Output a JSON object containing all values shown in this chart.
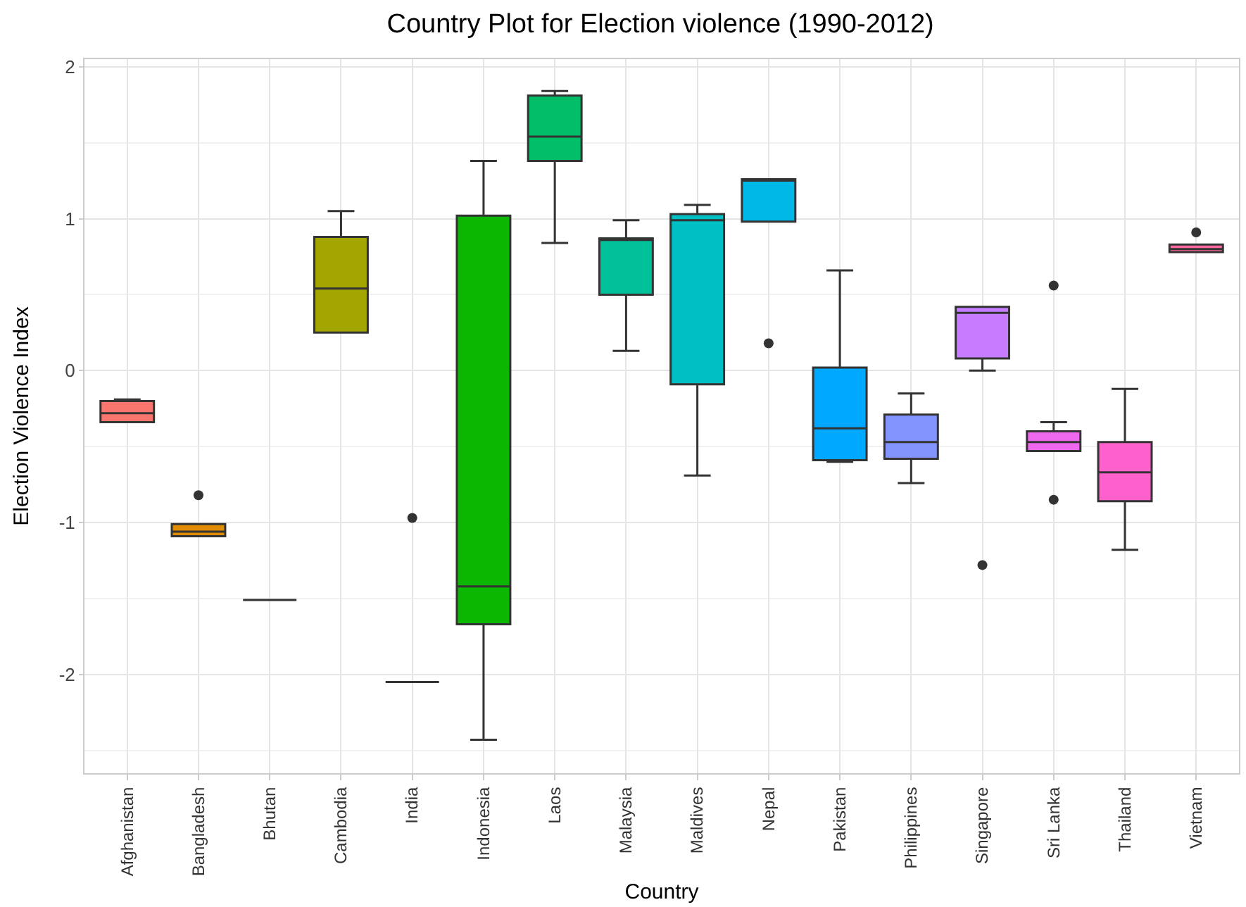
{
  "chart_data": {
    "type": "box",
    "title": "Country Plot for Election violence (1990-2012)",
    "xlabel": "Country",
    "ylabel": "Election Violence Index",
    "categories": [
      "Afghanistan",
      "Bangladesh",
      "Bhutan",
      "Cambodia",
      "India",
      "Indonesia",
      "Laos",
      "Malaysia",
      "Maldives",
      "Nepal",
      "Pakistan",
      "Philippines",
      "Singapore",
      "Sri Lanka",
      "Thailand",
      "Vietnam"
    ],
    "colors": [
      "#f8766d",
      "#e08b00",
      "#333333",
      "#a3a500",
      "#333333",
      "#0cb702",
      "#00be67",
      "#00c19a",
      "#00bfc4",
      "#00b8e7",
      "#00a9ff",
      "#8494ff",
      "#c77cff",
      "#ed68ed",
      "#ff61cc",
      "#ff68a1"
    ],
    "boxes": [
      {
        "low": -0.34,
        "q1": -0.34,
        "median": -0.28,
        "q3": -0.2,
        "high": -0.19
      },
      {
        "low": -1.09,
        "q1": -1.09,
        "median": -1.06,
        "q3": -1.01,
        "high": -1.01,
        "outliers": [
          -0.82
        ]
      },
      {
        "low": -1.51,
        "q1": -1.51,
        "median": -1.51,
        "q3": -1.51,
        "high": -1.51
      },
      {
        "low": 0.25,
        "q1": 0.25,
        "median": 0.54,
        "q3": 0.88,
        "high": 1.05
      },
      {
        "low": -2.05,
        "q1": -2.05,
        "median": -2.05,
        "q3": -2.05,
        "high": -2.05,
        "outliers": [
          -0.97
        ]
      },
      {
        "low": -2.43,
        "q1": -1.67,
        "median": -1.42,
        "q3": 1.02,
        "high": 1.38
      },
      {
        "low": 0.84,
        "q1": 1.38,
        "median": 1.54,
        "q3": 1.81,
        "high": 1.84
      },
      {
        "low": 0.13,
        "q1": 0.5,
        "median": 0.86,
        "q3": 0.87,
        "high": 0.99
      },
      {
        "low": -0.69,
        "q1": -0.09,
        "median": 0.99,
        "q3": 1.03,
        "high": 1.09
      },
      {
        "low": 0.98,
        "q1": 0.98,
        "median": 1.25,
        "q3": 1.26,
        "high": 1.26,
        "outliers": [
          0.18
        ]
      },
      {
        "low": -0.6,
        "q1": -0.59,
        "median": -0.38,
        "q3": 0.02,
        "high": 0.66
      },
      {
        "low": -0.74,
        "q1": -0.58,
        "median": -0.47,
        "q3": -0.29,
        "high": -0.15
      },
      {
        "low": 0.0,
        "q1": 0.08,
        "median": 0.38,
        "q3": 0.42,
        "high": 0.42,
        "outliers": [
          -1.28
        ]
      },
      {
        "low": -0.53,
        "q1": -0.53,
        "median": -0.47,
        "q3": -0.4,
        "high": -0.34,
        "outliers": [
          0.56,
          -0.85
        ]
      },
      {
        "low": -1.18,
        "q1": -0.86,
        "median": -0.67,
        "q3": -0.47,
        "high": -0.12
      },
      {
        "low": 0.78,
        "q1": 0.78,
        "median": 0.8,
        "q3": 0.83,
        "high": 0.83,
        "outliers": [
          0.91
        ]
      }
    ],
    "ylim": [
      -2.65,
      2.05
    ],
    "yticks": [
      -2,
      -1,
      0,
      1,
      2
    ],
    "grid": true
  }
}
